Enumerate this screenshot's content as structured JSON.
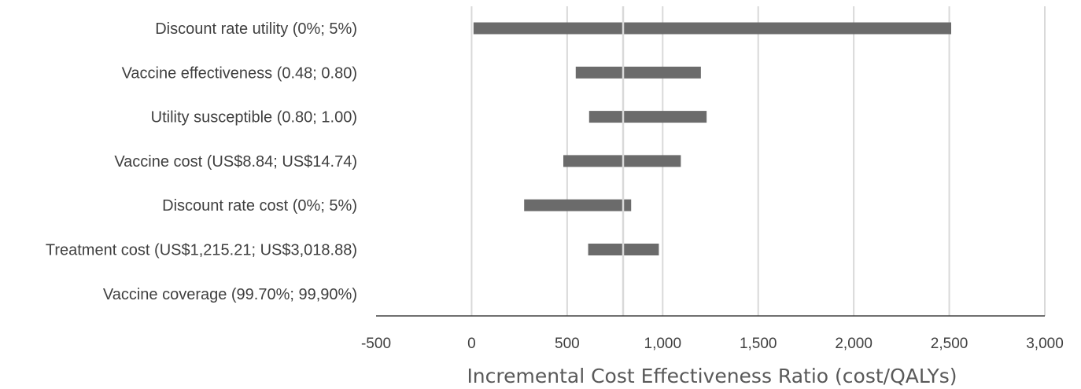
{
  "chart_data": {
    "type": "bar",
    "orientation": "horizontal",
    "subtype": "tornado",
    "categories": [
      "Discount rate utility (0%; 5%)",
      "Vaccine effectiveness (0.48; 0.80)",
      "Utility susceptible (0.80; 1.00)",
      "Vaccine cost (US$8.84; US$14.74)",
      "Discount rate cost (0%; 5%)",
      "Treatment cost (US$1,215.21; US$3,018.88)",
      "Vaccine coverage (99.70%; 99,90%)"
    ],
    "ranges": [
      [
        10,
        2510
      ],
      [
        545,
        1200
      ],
      [
        615,
        1230
      ],
      [
        480,
        1095
      ],
      [
        275,
        835
      ],
      [
        610,
        980
      ],
      [
        793,
        795
      ]
    ],
    "base_value": 793,
    "xlim": [
      -500,
      3000
    ],
    "x_ticks": [
      -500,
      0,
      500,
      1000,
      1500,
      2000,
      2500,
      3000
    ],
    "x_tick_labels": [
      "-500",
      "0",
      "500",
      "1,000",
      "1,500",
      "2,000",
      "2,500",
      "3,000"
    ],
    "xlabel": "Incremental Cost Effectiveness Ratio (cost/QALYs)",
    "title": "",
    "ylabel": "",
    "grid": true,
    "bar_color": "#6b6b6b",
    "grid_color": "#d9d9d9",
    "axis_color": "#404040"
  }
}
